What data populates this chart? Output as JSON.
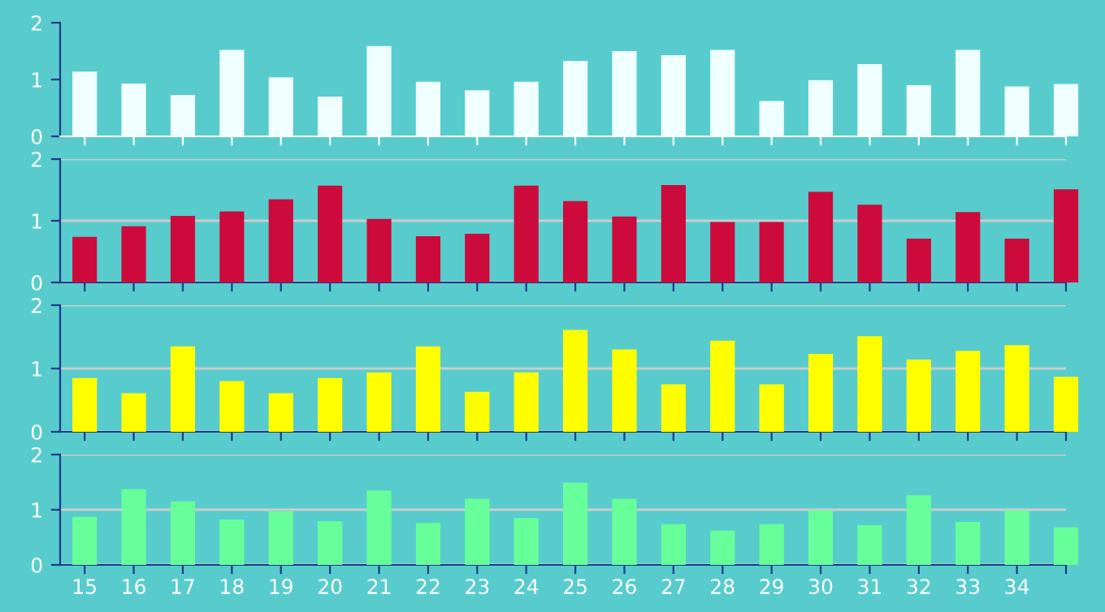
{
  "chart_data": [
    {
      "type": "bar",
      "categories": [
        "15",
        "16",
        "17",
        "18",
        "19",
        "20",
        "21",
        "22",
        "23",
        "24",
        "25",
        "26",
        "27",
        "28",
        "29",
        "30",
        "31",
        "32",
        "33",
        "34",
        null
      ],
      "ylim": [
        0,
        2
      ],
      "yticks": [
        0,
        1,
        2
      ],
      "grid": false,
      "tick_labels": "y",
      "series": [
        {
          "color": "#f0ffff",
          "values": [
            1.14,
            0.93,
            0.73,
            1.52,
            1.04,
            0.7,
            1.59,
            0.96,
            0.81,
            0.96,
            1.33,
            1.5,
            1.43,
            1.52,
            0.62,
            0.99,
            1.27,
            0.9,
            1.52,
            0.88,
            0.92
          ]
        }
      ]
    },
    {
      "type": "bar",
      "categories": [
        "15",
        "16",
        "17",
        "18",
        "19",
        "20",
        "21",
        "22",
        "23",
        "24",
        "25",
        "26",
        "27",
        "28",
        "29",
        "30",
        "31",
        "32",
        "33",
        "34",
        null
      ],
      "ylim": [
        0,
        2
      ],
      "yticks": [
        0,
        1,
        2
      ],
      "grid": "y",
      "tick_labels": "y",
      "series": [
        {
          "color": "#cc0a3c",
          "values": [
            0.74,
            0.91,
            1.08,
            1.15,
            1.35,
            1.57,
            1.03,
            0.75,
            0.79,
            1.57,
            1.32,
            1.07,
            1.58,
            0.98,
            0.98,
            1.47,
            1.26,
            0.71,
            1.14,
            0.71,
            1.51
          ]
        }
      ]
    },
    {
      "type": "bar",
      "categories": [
        "15",
        "16",
        "17",
        "18",
        "19",
        "20",
        "21",
        "22",
        "23",
        "24",
        "25",
        "26",
        "27",
        "28",
        "29",
        "30",
        "31",
        "32",
        "33",
        "34",
        null
      ],
      "ylim": [
        0,
        2
      ],
      "yticks": [
        0,
        1,
        2
      ],
      "grid": "y",
      "tick_labels": "y",
      "series": [
        {
          "color": "#ffff00",
          "values": [
            0.85,
            0.61,
            1.35,
            0.8,
            0.61,
            0.85,
            0.94,
            1.35,
            0.63,
            0.94,
            1.61,
            1.3,
            0.75,
            1.44,
            0.75,
            1.23,
            1.51,
            1.14,
            1.28,
            1.37,
            0.87
          ]
        }
      ]
    },
    {
      "type": "bar",
      "categories": [
        "15",
        "16",
        "17",
        "18",
        "19",
        "20",
        "21",
        "22",
        "23",
        "24",
        "25",
        "26",
        "27",
        "28",
        "29",
        "30",
        "31",
        "32",
        "33",
        "34",
        null
      ],
      "ylim": [
        0,
        2
      ],
      "yticks": [
        0,
        1,
        2
      ],
      "grid": "y",
      "series": [
        {
          "color": "#66ff99",
          "values": [
            0.87,
            1.37,
            1.15,
            0.82,
            0.97,
            0.79,
            1.35,
            0.76,
            1.2,
            0.85,
            1.49,
            1.2,
            0.74,
            0.62,
            0.74,
            0.99,
            0.72,
            1.26,
            0.78,
            0.99,
            0.68
          ]
        }
      ]
    }
  ]
}
